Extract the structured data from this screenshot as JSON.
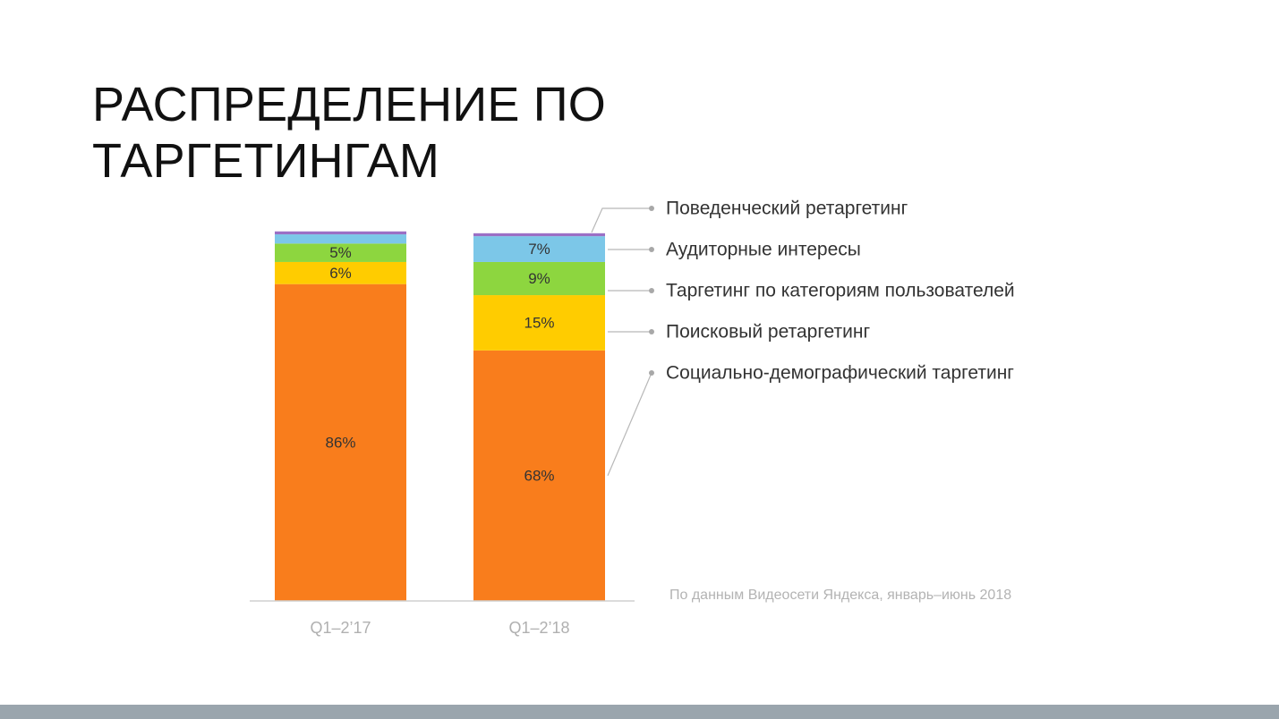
{
  "title_lines": [
    "РАСПРЕДЕЛЕНИЕ ПО",
    "ТАРГЕТИНГАМ"
  ],
  "source_note": "По данным Видеосети Яндекса, январь–июнь 2018",
  "chart_data": {
    "type": "bar",
    "stacked": true,
    "unit": "%",
    "ylim": [
      0,
      100
    ],
    "grid": false,
    "legend_position": "right",
    "categories": [
      "Q1–2’17",
      "Q1–2’18"
    ],
    "series": [
      {
        "name": "Социально-демографический таргетинг",
        "color": "#f97d1c",
        "values": [
          86,
          68
        ],
        "labels": [
          "86%",
          "68%"
        ]
      },
      {
        "name": "Поисковый ретаргетинг",
        "color": "#ffcc00",
        "values": [
          6,
          15
        ],
        "labels": [
          "6%",
          "15%"
        ]
      },
      {
        "name": "Таргетинг по категориям пользователей",
        "color": "#8dd63f",
        "values": [
          5,
          9
        ],
        "labels": [
          "5%",
          "9%"
        ]
      },
      {
        "name": "Аудиторные интересы",
        "color": "#7cc7e8",
        "values": [
          2.5,
          7
        ],
        "labels": [
          "",
          "7%"
        ]
      },
      {
        "name": "Поведенческий ретаргетинг",
        "color": "#9b6fc5",
        "values": [
          0.8,
          0.8
        ],
        "labels": [
          "",
          ""
        ]
      }
    ]
  }
}
